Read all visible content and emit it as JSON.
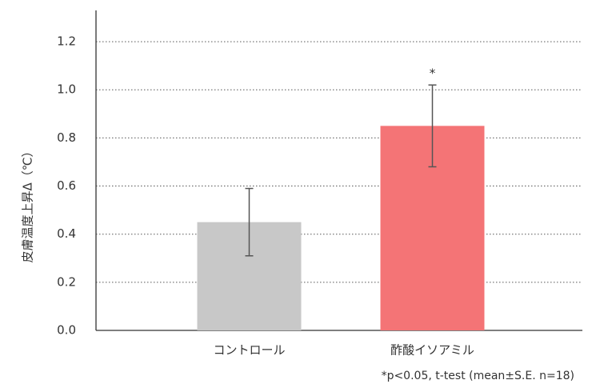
{
  "chart_data": {
    "type": "bar",
    "y_label": "皮膚温度上昇Δ（℃）",
    "categories": [
      "コントロール",
      "酢酸イソアミル"
    ],
    "values": [
      0.45,
      0.85
    ],
    "errors": [
      0.14,
      0.17
    ],
    "colors": [
      "#c8c8c8",
      "#f47476"
    ],
    "annotations": [
      "",
      "*"
    ],
    "footnote": "*p<0.05, t-test (mean±S.E. n=18)",
    "ylim": [
      0,
      1.33
    ],
    "yticks": [
      {
        "value": 0,
        "label": "0.0"
      },
      0.2,
      0.4,
      0.6,
      0.8,
      {
        "value": 1,
        "label": "1.0"
      },
      1.2
    ],
    "grid": true
  }
}
